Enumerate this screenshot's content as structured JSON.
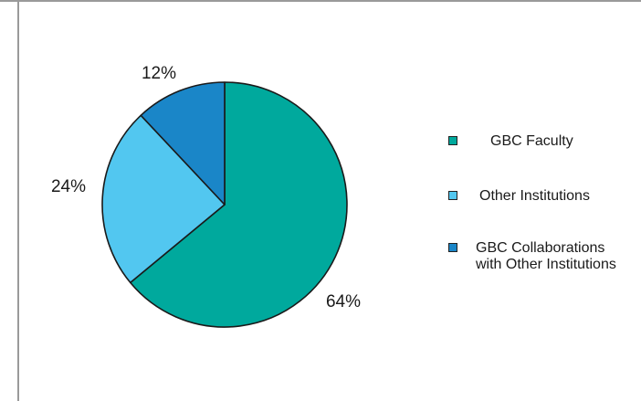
{
  "chart_data": {
    "type": "pie",
    "categories": [
      "GBC Faculty",
      "Other Institutions",
      "GBC Collaborations with Other Institutions"
    ],
    "values": [
      64,
      24,
      12
    ],
    "labels": [
      "64%",
      "24%",
      "12%"
    ],
    "colors": [
      "#00a99d",
      "#52c7f0",
      "#1a86c8"
    ],
    "legend_position": "right"
  },
  "legend": {
    "items": [
      {
        "lines": [
          "GBC Faculty"
        ],
        "color": "#00a99d"
      },
      {
        "lines": [
          "Other Institutions"
        ],
        "color": "#52c7f0"
      },
      {
        "lines": [
          "GBC Collaborations",
          "with Other Institutions"
        ],
        "color": "#1a86c8"
      }
    ]
  }
}
